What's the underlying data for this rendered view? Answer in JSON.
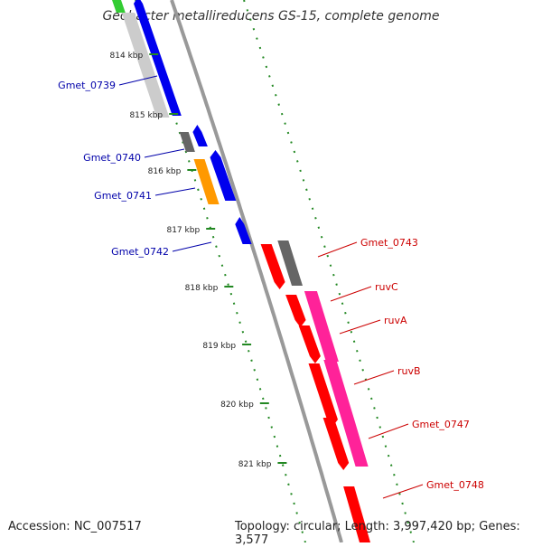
{
  "title": "Geobacter metallireducens GS-15, complete genome",
  "footer": {
    "accession": "Accession: NC_007517",
    "topology": "Topology: circular; Length: 3,997,420 bp; Genes: 3,577"
  },
  "ruler": {
    "ticks": [
      "814 kbp",
      "815 kbp",
      "816 kbp",
      "817 kbp",
      "818 kbp",
      "819 kbp",
      "820 kbp",
      "821 kbp"
    ]
  },
  "colors": {
    "forward_gene": "#0000ee",
    "reverse_gene": "#ff0000",
    "forward_label": "#0000aa",
    "reverse_label": "#cc0000",
    "gray_feature": "#666666",
    "orange_feature": "#ff9900",
    "magenta_feature": "#ff2299",
    "light_gray_feature": "#cccccc",
    "green_feature": "#33cc33",
    "dotted_line": "#228822",
    "backbone": "#999999"
  },
  "labels": {
    "forward": [
      "Gmet_0739",
      "Gmet_0740",
      "Gmet_0741",
      "Gmet_0742"
    ],
    "reverse": [
      "Gmet_0743",
      "ruvC",
      "ruvA",
      "ruvB",
      "Gmet_0747",
      "Gmet_0748"
    ]
  }
}
